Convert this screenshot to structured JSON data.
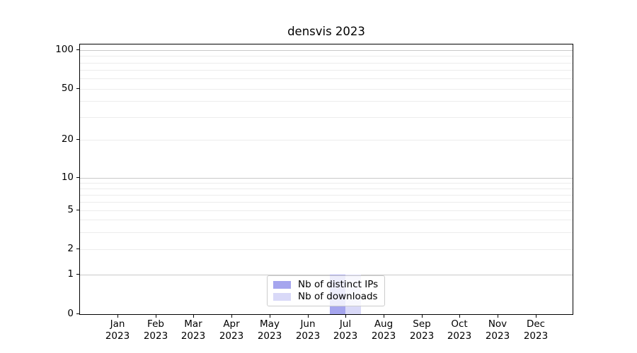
{
  "chart_data": {
    "type": "bar",
    "title": "densvis 2023",
    "categories": [
      "Jan 2023",
      "Feb 2023",
      "Mar 2023",
      "Apr 2023",
      "May 2023",
      "Jun 2023",
      "Jul 2023",
      "Aug 2023",
      "Sep 2023",
      "Oct 2023",
      "Nov 2023",
      "Dec 2023"
    ],
    "series": [
      {
        "name": "Nb of distinct IPs",
        "color": "#a5a5ee",
        "values": [
          0,
          0,
          0,
          0,
          0,
          0,
          1,
          0,
          0,
          0,
          0,
          0
        ]
      },
      {
        "name": "Nb of downloads",
        "color": "#d9d9f8",
        "values": [
          0,
          0,
          0,
          0,
          0,
          0,
          1,
          0,
          0,
          0,
          0,
          0
        ]
      }
    ],
    "xlabel": "",
    "ylabel": "",
    "yscale": "symlog",
    "ylim": [
      0,
      112
    ],
    "yticks": [
      0,
      1,
      2,
      5,
      10,
      20,
      50,
      100
    ],
    "major_gridline_values": [
      1,
      10,
      100
    ],
    "minor_gridline_values": [
      2,
      3,
      4,
      5,
      6,
      7,
      8,
      9,
      20,
      30,
      40,
      50,
      60,
      70,
      80,
      90
    ],
    "grid": "horizontal",
    "legend_position": "lower center"
  }
}
